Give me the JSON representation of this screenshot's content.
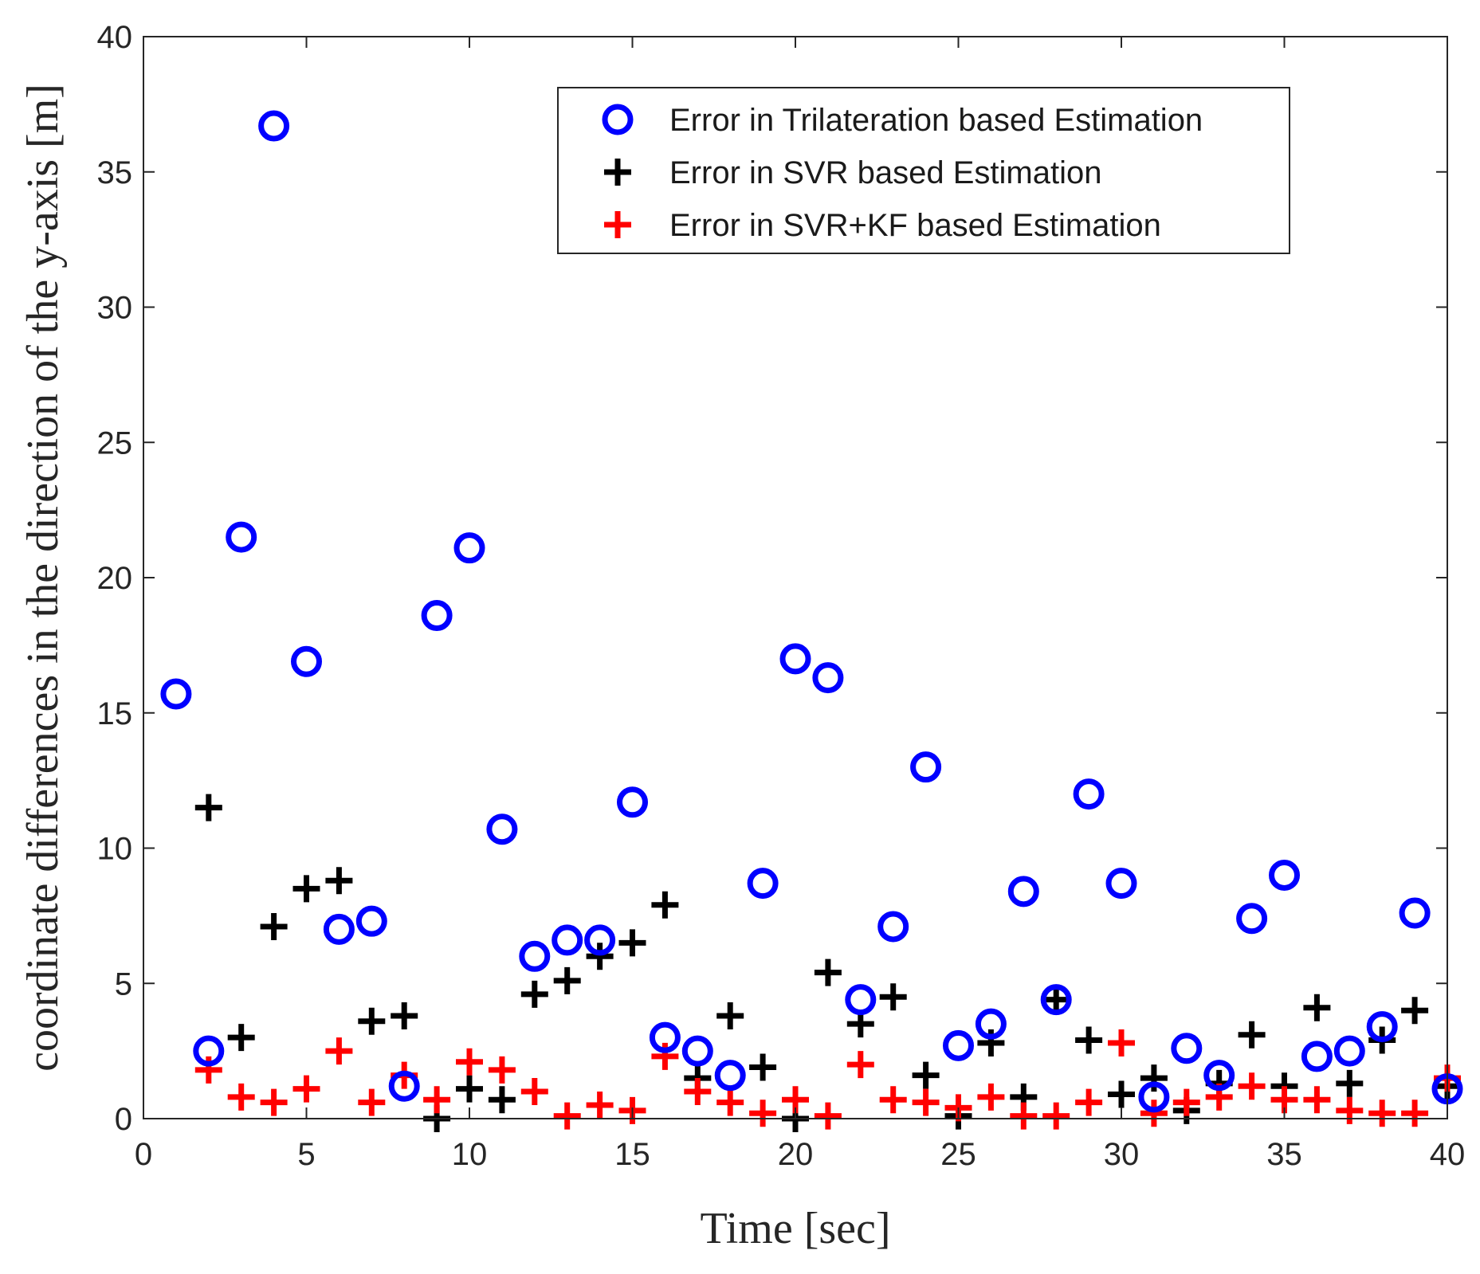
{
  "chart_data": {
    "type": "scatter",
    "title": "",
    "xlabel": "Time [sec]",
    "ylabel": "coordinate differences in the direction of the y-axis [m]",
    "xlim": [
      0,
      40
    ],
    "ylim": [
      0,
      40
    ],
    "xticks": [
      0,
      5,
      10,
      15,
      20,
      25,
      30,
      35,
      40
    ],
    "yticks": [
      0,
      5,
      10,
      15,
      20,
      25,
      30,
      35,
      40
    ],
    "grid": false,
    "legend_position": "top-right",
    "series": [
      {
        "name": "Error in Trilateration based Estimation",
        "marker": "circle",
        "color": "#0000ff",
        "x": [
          1,
          2,
          3,
          4,
          5,
          6,
          7,
          8,
          9,
          10,
          11,
          12,
          13,
          14,
          15,
          16,
          17,
          18,
          19,
          20,
          21,
          22,
          23,
          24,
          25,
          26,
          27,
          28,
          29,
          30,
          31,
          32,
          33,
          34,
          35,
          36,
          37,
          38,
          39,
          40
        ],
        "y": [
          15.7,
          2.5,
          21.5,
          36.7,
          16.9,
          7.0,
          7.3,
          1.2,
          18.6,
          21.1,
          10.7,
          6.0,
          6.6,
          6.6,
          11.7,
          3.0,
          2.5,
          1.6,
          8.7,
          17.0,
          16.3,
          4.4,
          7.1,
          13.0,
          2.7,
          3.5,
          8.4,
          4.4,
          12.0,
          8.7,
          0.8,
          2.6,
          1.6,
          7.4,
          9.0,
          2.3,
          2.5,
          3.4,
          7.6,
          1.1
        ]
      },
      {
        "name": "Error in SVR based Estimation",
        "marker": "plus",
        "color": "#000000",
        "x": [
          2,
          3,
          4,
          5,
          6,
          7,
          8,
          9,
          10,
          11,
          12,
          13,
          14,
          15,
          16,
          17,
          18,
          19,
          20,
          21,
          22,
          23,
          24,
          25,
          26,
          27,
          28,
          29,
          30,
          31,
          32,
          33,
          34,
          35,
          36,
          37,
          38,
          39,
          40
        ],
        "y": [
          11.5,
          3.0,
          7.1,
          8.5,
          8.8,
          3.6,
          3.8,
          0.0,
          1.1,
          0.7,
          4.6,
          5.1,
          6.0,
          6.5,
          7.9,
          1.5,
          3.8,
          1.9,
          0.0,
          5.4,
          3.5,
          4.5,
          1.6,
          0.1,
          2.8,
          0.8,
          4.4,
          2.9,
          0.9,
          1.5,
          0.3,
          1.3,
          3.1,
          1.2,
          4.1,
          1.3,
          2.9,
          4.0,
          1.2
        ]
      },
      {
        "name": "Error in SVR+KF based Estimation",
        "marker": "plus",
        "color": "#ff0000",
        "x": [
          2,
          3,
          4,
          5,
          6,
          7,
          8,
          9,
          10,
          11,
          12,
          13,
          14,
          15,
          16,
          17,
          18,
          19,
          20,
          21,
          22,
          23,
          24,
          25,
          26,
          27,
          28,
          29,
          30,
          31,
          32,
          33,
          34,
          35,
          36,
          37,
          38,
          39,
          40
        ],
        "y": [
          1.8,
          0.8,
          0.6,
          1.1,
          2.5,
          0.6,
          1.6,
          0.7,
          2.1,
          1.8,
          1.0,
          0.1,
          0.5,
          0.3,
          2.3,
          1.0,
          0.6,
          0.2,
          0.7,
          0.1,
          2.0,
          0.7,
          0.6,
          0.4,
          0.8,
          0.1,
          0.1,
          0.6,
          2.8,
          0.2,
          0.6,
          0.8,
          1.2,
          0.7,
          0.7,
          0.3,
          0.2,
          0.2,
          1.5
        ]
      }
    ]
  }
}
